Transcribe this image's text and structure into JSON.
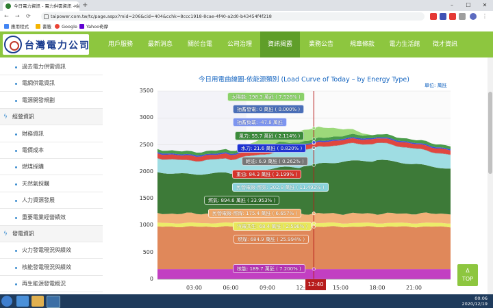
{
  "browser": {
    "tab_title": "今日電力資訊 - 電力供需資訊 - 台",
    "tab_close": "×",
    "new_tab": "+",
    "url": "taipower.com.tw/tc/page.aspx?mid=206&cid=404&cchk=8ccc1918-8cae-4f40-a2d0-b43454f4f218",
    "window_controls": [
      "–",
      "☐",
      "✕"
    ],
    "nav": [
      "←",
      "→",
      "⟳"
    ]
  },
  "bookmarks": [
    {
      "label": "應用程式",
      "color": "#4285f4"
    },
    {
      "label": "書籤",
      "color": "#f4b400"
    },
    {
      "label": "Google",
      "color": "#ea4335"
    },
    {
      "label": "Yahoo奇摩",
      "color": "#6001d2"
    }
  ],
  "site": {
    "logo_text": "台灣電力公司",
    "menu": [
      "用戶服務",
      "最新消息",
      "關於台電",
      "公司治理",
      "資訊揭露",
      "業務公告",
      "規章條款",
      "電力生活館",
      "徵才資訊"
    ],
    "active_menu": "資訊揭露"
  },
  "sidebar": [
    {
      "label": "過去電力供需資訊",
      "type": "item"
    },
    {
      "label": "電網供電資訊",
      "type": "item"
    },
    {
      "label": "電源開發規劃",
      "type": "item"
    },
    {
      "label": "經營資訊",
      "type": "head"
    },
    {
      "label": "財務資訊",
      "type": "item"
    },
    {
      "label": "電價成本",
      "type": "item"
    },
    {
      "label": "燃煤採購",
      "type": "item"
    },
    {
      "label": "天然氣採購",
      "type": "item"
    },
    {
      "label": "人力資源發展",
      "type": "item"
    },
    {
      "label": "重要電業經營績效",
      "type": "item"
    },
    {
      "label": "發電資訊",
      "type": "head"
    },
    {
      "label": "火力發電現況與績效",
      "type": "item"
    },
    {
      "label": "核能發電現況與績效",
      "type": "item"
    },
    {
      "label": "再生能源發電概況",
      "type": "item"
    }
  ],
  "chart_data": {
    "type": "area",
    "title": "今日用電曲線圖-依能源類別 (Load Curve of Today – by Energy Type)",
    "unit_label": "單位: 萬瓩",
    "ylim": [
      0,
      3500
    ],
    "yticks": [
      0,
      500,
      1000,
      1500,
      2000,
      2500,
      3000,
      3500
    ],
    "xticks": [
      "03:00",
      "06:00",
      "09:00",
      "12:00",
      "15:00",
      "18:00",
      "21:00"
    ],
    "hover_time": "12:40",
    "stack_order": [
      "核能",
      "燃煤",
      "汽電共生",
      "民營電廠-燃煤",
      "燃氣",
      "民營電廠-燃氣",
      "輕油",
      "重油",
      "水力",
      "風力",
      "太陽能"
    ],
    "tooltip": [
      {
        "label": "太陽能: 198.3 萬瓩 ( 7.526% )",
        "color": "#8bd16a"
      },
      {
        "label": "抽蓄發電: 0 萬瓩 ( 0.000% )",
        "color": "#4a6fb8"
      },
      {
        "label": "抽蓄負載: -47.8 萬瓩",
        "color": "#7d95f0"
      },
      {
        "label": "風力: 55.7 萬瓩 ( 2.114% )",
        "color": "#3c8b3c"
      },
      {
        "label": "水力: 21.6 萬瓩 ( 0.820% )",
        "color": "#2034d4"
      },
      {
        "label": "輕油: 6.9 萬瓩 ( 0.262% )",
        "color": "#777777"
      },
      {
        "label": "重油: 84.3 萬瓩 ( 3.199% )",
        "color": "#d7332a"
      },
      {
        "label": "民營電廠-燃氣: 302.8 萬瓩 ( 11.492% )",
        "color": "#8ad4dc"
      },
      {
        "label": "燃氣: 894.6 萬瓩 ( 33.953% )",
        "color": "#2f6b2a"
      },
      {
        "label": "民營電廠-燃煤: 175.4 萬瓩 ( 6.657% )",
        "color": "#f0a868"
      },
      {
        "label": "汽電共生: 68.4 萬瓩 ( 2.596% )",
        "color": "#e8e85a"
      },
      {
        "label": "燃煤: 684.9 萬瓩 ( 25.994% )",
        "color": "#df8350"
      },
      {
        "label": "核能: 189.7 萬瓩 ( 7.200% )",
        "color": "#b533b5"
      }
    ]
  },
  "top_button": {
    "arrow": "Δ",
    "label": "TOP"
  },
  "taskbar": {
    "time": "00:06",
    "date": "2020/12/19"
  }
}
